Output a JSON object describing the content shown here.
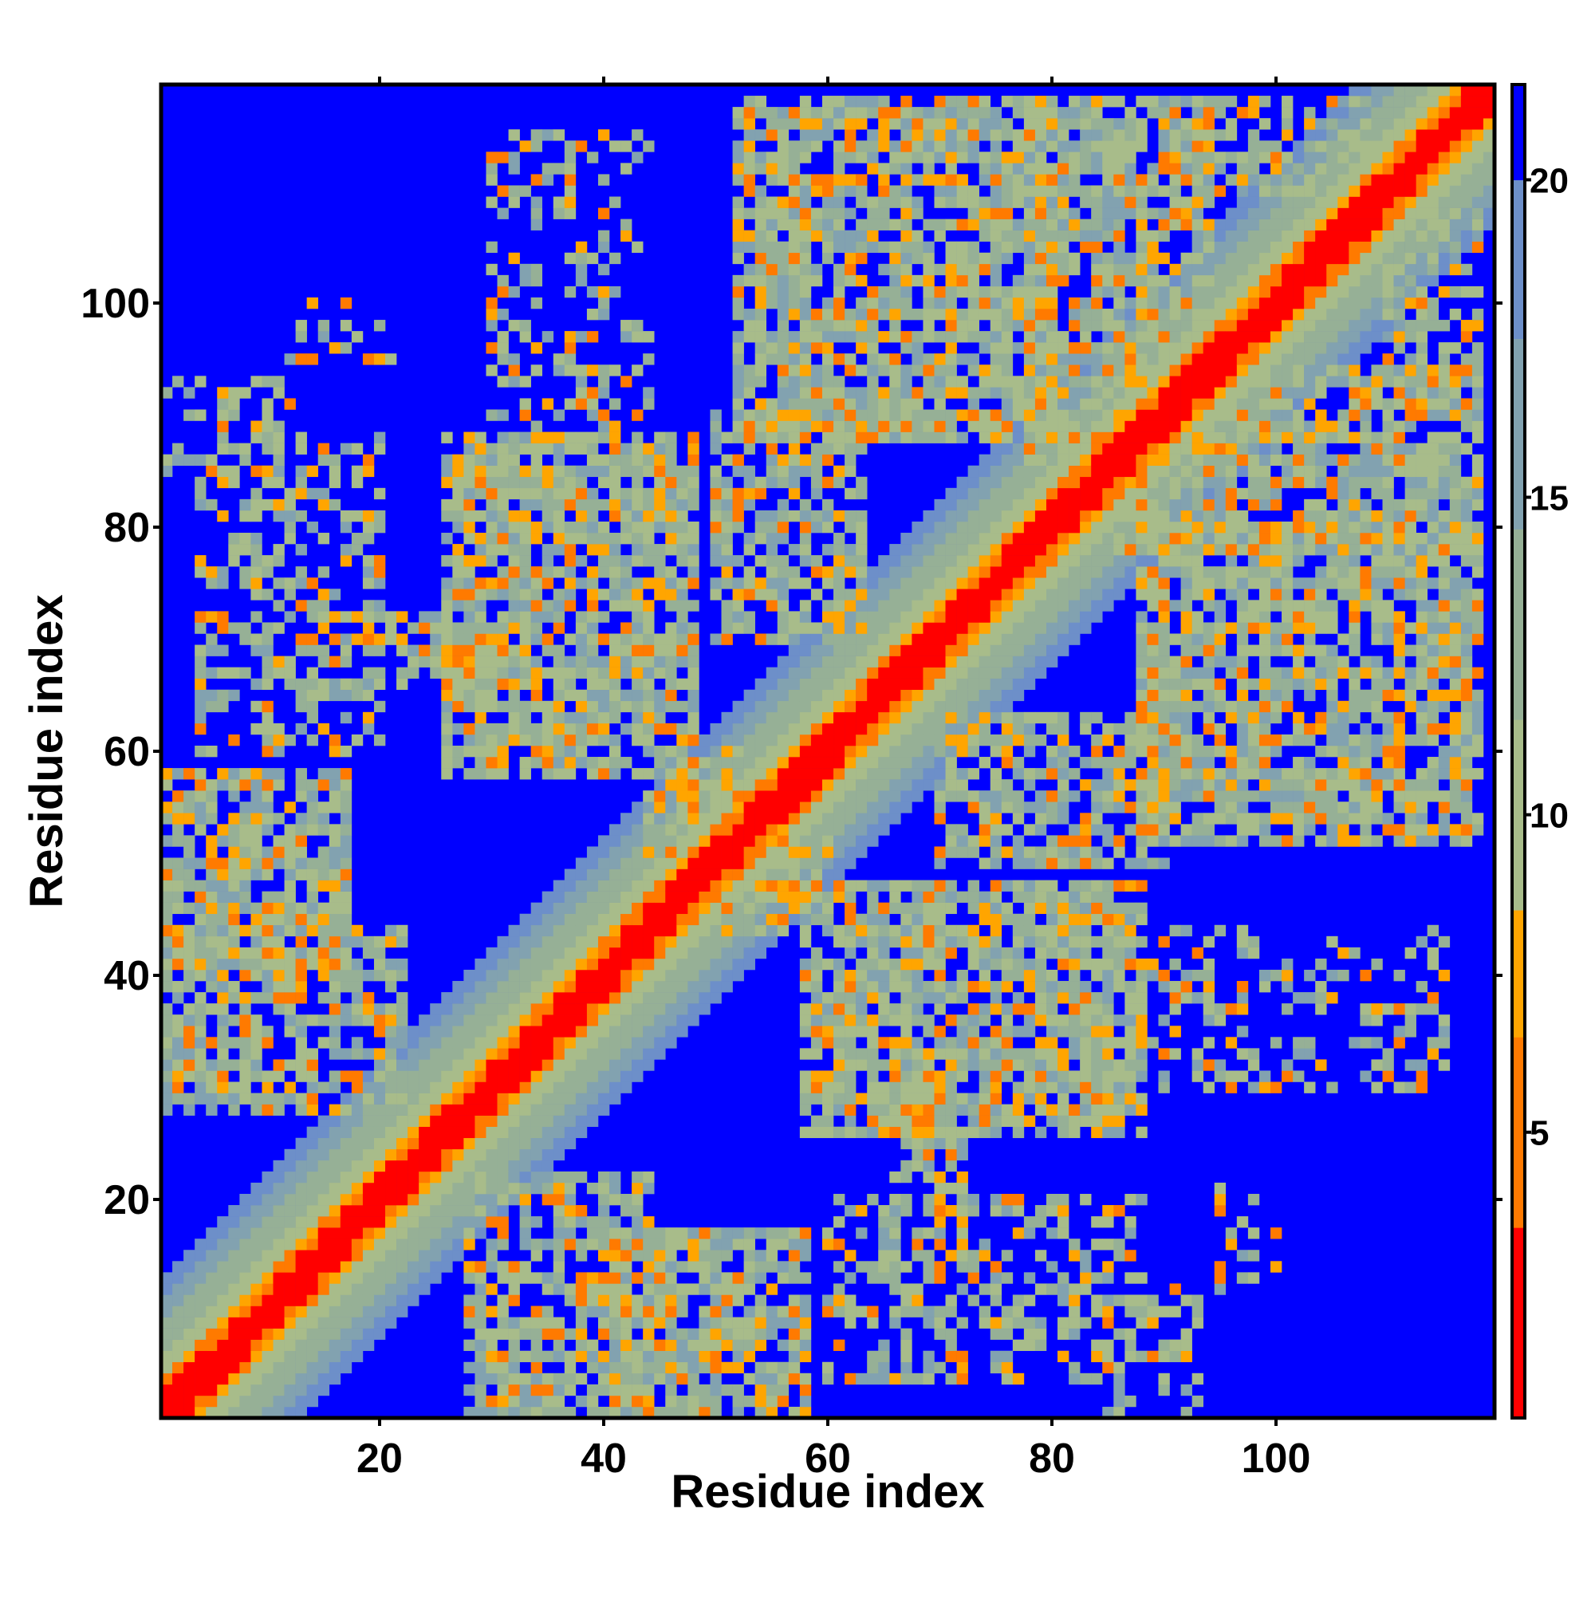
{
  "chart_data": {
    "type": "heatmap",
    "title": "",
    "xlabel": "Residue index",
    "ylabel": "Residue index",
    "n_residues": 119,
    "xlim": [
      0.5,
      119.5
    ],
    "ylim": [
      0.5,
      119.5
    ],
    "x_ticks": [
      20,
      40,
      60,
      80,
      100
    ],
    "y_ticks": [
      20,
      40,
      60,
      80,
      100
    ],
    "colorbar": {
      "range": [
        0.5,
        21.5
      ],
      "ticks": [
        5,
        10,
        15,
        20
      ],
      "placement": "right",
      "colors": [
        {
          "from": 0.5,
          "to": 3.5,
          "color": "#ff0000"
        },
        {
          "from": 3.5,
          "to": 6.5,
          "color": "#ff7a00"
        },
        {
          "from": 6.5,
          "to": 8.5,
          "color": "#ffa500"
        },
        {
          "from": 8.5,
          "to": 11.5,
          "color": "#a8bc8a"
        },
        {
          "from": 11.5,
          "to": 14.5,
          "color": "#96b096"
        },
        {
          "from": 14.5,
          "to": 17.5,
          "color": "#82a2b0"
        },
        {
          "from": 17.5,
          "to": 20.0,
          "color": "#6d8fc9"
        },
        {
          "from": 20.0,
          "to": 21.5,
          "color": "#0000ff"
        }
      ]
    },
    "value_description": "Symmetric residue-residue distance matrix; diagonal band of values below 4, secondary-structure contact patches with values 8-17 and scattered close contacts (5-8); background at cap value 21",
    "diagonal_band": [
      {
        "offset": 0,
        "value": 1
      },
      {
        "offset": 1,
        "value": 2.5
      },
      {
        "offset": 2,
        "value": 5
      },
      {
        "offset": 3,
        "value": 7
      },
      {
        "offset": 4,
        "value": 9.5
      },
      {
        "offset": 5,
        "value": 11
      },
      {
        "offset": 6,
        "value": 12
      },
      {
        "offset": 7,
        "value": 13
      },
      {
        "offset": 8,
        "value": 14
      },
      {
        "offset": 9,
        "value": 15
      },
      {
        "offset": 10,
        "value": 16.5
      },
      {
        "offset": 11,
        "value": 18
      },
      {
        "offset": 12,
        "value": 19
      }
    ],
    "contact_regions": [
      {
        "x": [
          1,
          17
        ],
        "y": [
          40,
          58
        ],
        "density": 0.82
      },
      {
        "x": [
          1,
          22
        ],
        "y": [
          28,
          44
        ],
        "density": 0.72
      },
      {
        "x": [
          4,
          20
        ],
        "y": [
          60,
          88
        ],
        "density": 0.42
      },
      {
        "x": [
          1,
          12
        ],
        "y": [
          85,
          93
        ],
        "density": 0.32
      },
      {
        "x": [
          26,
          48
        ],
        "y": [
          58,
          88
        ],
        "density": 0.82
      },
      {
        "x": [
          18,
          32
        ],
        "y": [
          66,
          72
        ],
        "density": 0.7
      },
      {
        "x": [
          30,
          44
        ],
        "y": [
          88,
          115
        ],
        "density": 0.35
      },
      {
        "x": [
          12,
          22
        ],
        "y": [
          95,
          100
        ],
        "density": 0.25
      },
      {
        "x": [
          52,
          80
        ],
        "y": [
          88,
          118
        ],
        "density": 0.82
      },
      {
        "x": [
          50,
          63
        ],
        "y": [
          70,
          90
        ],
        "density": 0.7
      },
      {
        "x": [
          78,
          94
        ],
        "y": [
          86,
          118
        ],
        "density": 0.8
      },
      {
        "x": [
          94,
          108
        ],
        "y": [
          110,
          118
        ],
        "density": 0.75
      },
      {
        "x": [
          44,
          60
        ],
        "y": [
          46,
          58
        ],
        "density": 0.7
      }
    ]
  }
}
